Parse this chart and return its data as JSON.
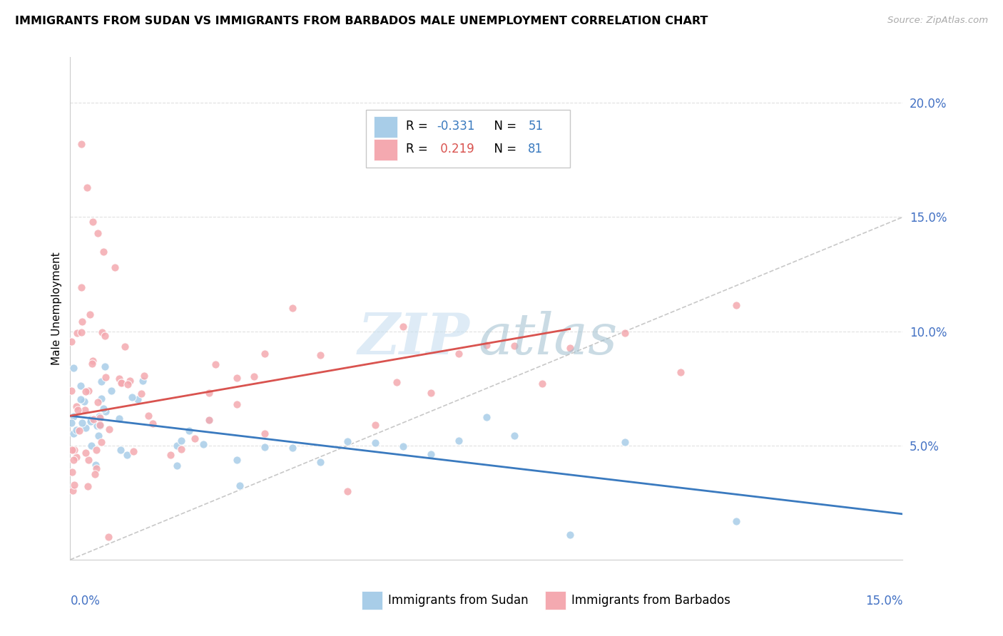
{
  "title": "IMMIGRANTS FROM SUDAN VS IMMIGRANTS FROM BARBADOS MALE UNEMPLOYMENT CORRELATION CHART",
  "source": "Source: ZipAtlas.com",
  "ylabel": "Male Unemployment",
  "y_ticks": [
    0.05,
    0.1,
    0.15,
    0.2
  ],
  "y_tick_labels": [
    "5.0%",
    "10.0%",
    "15.0%",
    "20.0%"
  ],
  "x_range": [
    0.0,
    0.15
  ],
  "y_range": [
    0.0,
    0.22
  ],
  "sudan_color": "#a8cde8",
  "barbados_color": "#f4a9b0",
  "sudan_r": -0.331,
  "sudan_n": 51,
  "barbados_r": 0.219,
  "barbados_n": 81,
  "sudan_line_color": "#3a7abf",
  "barbados_line_color": "#d9534f",
  "diagonal_color": "#c8c8c8",
  "background_color": "#ffffff",
  "grid_color": "#e0e0e0",
  "legend_r_sudan_color": "#3a7abf",
  "legend_r_barbados_color": "#d9534f",
  "legend_n_color": "#3a7abf"
}
